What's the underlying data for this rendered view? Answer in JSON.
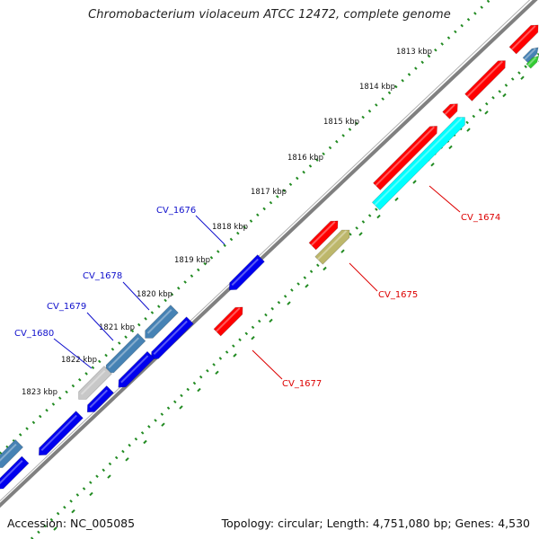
{
  "title": "Chromobacterium violaceum ATCC 12472, complete genome",
  "footer": {
    "accession": "Accession: NC_005085",
    "summary": "Topology: circular; Length: 4,751,080 bp; Genes: 4,530"
  },
  "colors": {
    "backbone": "#808080",
    "dots_ticks": "#228b22",
    "forward_red": "#ff0000",
    "reverse_blue": "#0000ee",
    "cyan": "#00ffff",
    "olive": "#bdb76b",
    "steelblue": "#4682b4",
    "grey": "#c8c8c8",
    "green": "#33cc33",
    "label_red": "#dd0000",
    "label_blue": "#1010cc"
  },
  "scale": {
    "labels": [
      "1813 kbp",
      "1814 kbp",
      "1815 kbp",
      "1816 kbp",
      "1817 kbp",
      "1818 kbp",
      "1819 kbp",
      "1820 kbp",
      "1821 kbp",
      "1822 kbp",
      "1823 kbp"
    ]
  },
  "gene_labels": [
    {
      "text": "CV_1674",
      "color": "red"
    },
    {
      "text": "CV_1675",
      "color": "red"
    },
    {
      "text": "CV_1677",
      "color": "red"
    },
    {
      "text": "CV_1676",
      "color": "blue"
    },
    {
      "text": "CV_1678",
      "color": "blue"
    },
    {
      "text": "CV_1679",
      "color": "blue"
    },
    {
      "text": "CV_1680",
      "color": "blue"
    }
  ],
  "features": [
    {
      "name": "forward-gene",
      "color": "forward_red",
      "track": "fwd"
    },
    {
      "name": "forward-gene",
      "color": "forward_red",
      "track": "fwd"
    },
    {
      "name": "forward-gene",
      "color": "forward_red",
      "track": "fwd"
    },
    {
      "name": "forward-gene-cv1674",
      "color": "forward_red",
      "track": "fwd"
    },
    {
      "name": "forward-gene",
      "color": "forward_red",
      "track": "fwd"
    },
    {
      "name": "forward-gene-cv1677",
      "color": "forward_red",
      "track": "fwd"
    },
    {
      "name": "cds-cv1674",
      "color": "cyan",
      "track": "fwd2"
    },
    {
      "name": "cds-cv1675",
      "color": "olive",
      "track": "fwd2"
    },
    {
      "name": "reverse-gene-cv1676",
      "color": "reverse_blue",
      "track": "rev"
    },
    {
      "name": "reverse-gene",
      "color": "reverse_blue",
      "track": "rev"
    },
    {
      "name": "reverse-gene",
      "color": "reverse_blue",
      "track": "rev"
    },
    {
      "name": "reverse-gene",
      "color": "reverse_blue",
      "track": "rev"
    },
    {
      "name": "reverse-gene",
      "color": "reverse_blue",
      "track": "rev"
    },
    {
      "name": "reverse-gene",
      "color": "reverse_blue",
      "track": "rev"
    },
    {
      "name": "cds-cv1678",
      "color": "steelblue",
      "track": "rev2"
    },
    {
      "name": "cds-cv1679",
      "color": "steelblue",
      "track": "rev2"
    },
    {
      "name": "cds-cv1680",
      "color": "grey",
      "track": "rev2"
    },
    {
      "name": "cds-left",
      "color": "steelblue",
      "track": "rev2"
    },
    {
      "name": "cds-top-steelblue",
      "color": "steelblue",
      "track": "fwd2"
    },
    {
      "name": "cds-top-green",
      "color": "green",
      "track": "fwd2"
    }
  ]
}
